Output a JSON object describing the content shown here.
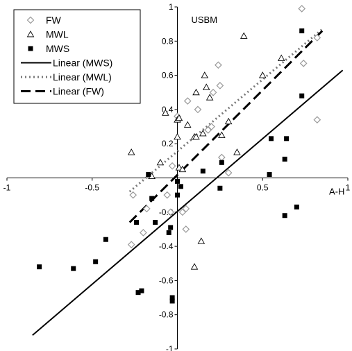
{
  "chart_data": {
    "type": "scatter",
    "inner_label": "USBM",
    "xlabel": "A-H",
    "ylabel": "",
    "xlim": [
      -1,
      1
    ],
    "ylim": [
      -1,
      1
    ],
    "x_ticks": [
      {
        "value": -1,
        "label": "-1"
      },
      {
        "value": -0.5,
        "label": "-0.5"
      },
      {
        "value": 0,
        "label": "0"
      },
      {
        "value": 0.5,
        "label": "0.5"
      },
      {
        "value": 1,
        "label": "1"
      }
    ],
    "y_ticks": [
      {
        "value": -1,
        "label": "-1"
      },
      {
        "value": -0.8,
        "label": "-0.8"
      },
      {
        "value": -0.6,
        "label": "-0.6"
      },
      {
        "value": -0.4,
        "label": "-0.4"
      },
      {
        "value": -0.2,
        "label": "-0.2"
      },
      {
        "value": 0.2,
        "label": "0.2"
      },
      {
        "value": 0.4,
        "label": "0.4"
      },
      {
        "value": 0.6,
        "label": "0.6"
      },
      {
        "value": 0.8,
        "label": "0.8"
      },
      {
        "value": 1,
        "label": "1"
      }
    ],
    "grid": false,
    "legend_position": "top-left",
    "series": [
      {
        "name": "FW",
        "marker": "diamond",
        "color": "#999999",
        "points": [
          [
            0.73,
            0.99
          ],
          [
            0.82,
            0.82
          ],
          [
            0.24,
            0.66
          ],
          [
            0.74,
            0.67
          ],
          [
            0.06,
            0.45
          ],
          [
            0.12,
            0.4
          ],
          [
            0.25,
            0.54
          ],
          [
            0.21,
            0.5
          ],
          [
            0.0,
            0.36
          ],
          [
            0.82,
            0.34
          ],
          [
            0.2,
            0.3
          ],
          [
            0.18,
            0.28
          ],
          [
            -0.03,
            0.07
          ],
          [
            0.26,
            0.12
          ],
          [
            -0.26,
            -0.1
          ],
          [
            -0.06,
            -0.1
          ],
          [
            0.05,
            -0.18
          ],
          [
            -0.18,
            -0.18
          ],
          [
            0.03,
            -0.2
          ],
          [
            -0.04,
            -0.2
          ],
          [
            -0.2,
            -0.32
          ],
          [
            0.05,
            -0.3
          ],
          [
            -0.27,
            -0.39
          ],
          [
            0.3,
            0.03
          ]
        ]
      },
      {
        "name": "MWL",
        "marker": "triangle",
        "color": "#999999",
        "points": [
          [
            0.39,
            0.83
          ],
          [
            0.61,
            0.7
          ],
          [
            0.16,
            0.6
          ],
          [
            0.5,
            0.6
          ],
          [
            0.17,
            0.53
          ],
          [
            0.11,
            0.5
          ],
          [
            0.19,
            0.47
          ],
          [
            0.06,
            0.31
          ],
          [
            0.0,
            0.34
          ],
          [
            0.01,
            0.35
          ],
          [
            -0.07,
            0.38
          ],
          [
            0.3,
            0.33
          ],
          [
            0.15,
            0.26
          ],
          [
            -0.27,
            0.15
          ],
          [
            0.35,
            0.15
          ],
          [
            0.1,
            0.24
          ],
          [
            0.11,
            0.24
          ],
          [
            0.26,
            0.25
          ],
          [
            0.0,
            0.24
          ],
          [
            -0.1,
            0.09
          ],
          [
            0.01,
            0.06
          ],
          [
            0.03,
            0.05
          ],
          [
            -0.15,
            0.01
          ],
          [
            0.14,
            -0.37
          ],
          [
            0.1,
            -0.52
          ]
        ]
      },
      {
        "name": "MWS",
        "marker": "square",
        "color": "#000000",
        "points": [
          [
            0.73,
            0.86
          ],
          [
            0.73,
            0.48
          ],
          [
            0.55,
            0.23
          ],
          [
            0.64,
            0.23
          ],
          [
            0.63,
            0.11
          ],
          [
            0.26,
            0.09
          ],
          [
            0.15,
            0.04
          ],
          [
            0.54,
            0.02
          ],
          [
            -0.17,
            0.02
          ],
          [
            0.0,
            -0.02
          ],
          [
            0.02,
            -0.05
          ],
          [
            0.25,
            -0.06
          ],
          [
            0.0,
            -0.1
          ],
          [
            -0.15,
            -0.12
          ],
          [
            -0.24,
            -0.26
          ],
          [
            -0.13,
            -0.26
          ],
          [
            -0.04,
            -0.29
          ],
          [
            -0.05,
            -0.32
          ],
          [
            0.63,
            -0.22
          ],
          [
            0.7,
            -0.17
          ],
          [
            -0.42,
            -0.36
          ],
          [
            -0.48,
            -0.49
          ],
          [
            -0.81,
            -0.52
          ],
          [
            -0.61,
            -0.53
          ],
          [
            -0.23,
            -0.67
          ],
          [
            -0.21,
            -0.66
          ],
          [
            -0.03,
            -0.7
          ],
          [
            -0.03,
            -0.72
          ]
        ]
      }
    ],
    "trendlines": [
      {
        "name": "Linear (MWS)",
        "style": "solid",
        "color": "#000000",
        "x": [
          -0.85,
          0.97
        ],
        "y": [
          -0.92,
          0.63
        ]
      },
      {
        "name": "Linear (MWL)",
        "style": "dotted",
        "color": "#777777",
        "x": [
          -0.28,
          0.85
        ],
        "y": [
          -0.08,
          0.87
        ]
      },
      {
        "name": "Linear (FW)",
        "style": "dashed",
        "color": "#000000",
        "x": [
          -0.28,
          0.85
        ],
        "y": [
          -0.26,
          0.86
        ]
      }
    ]
  }
}
